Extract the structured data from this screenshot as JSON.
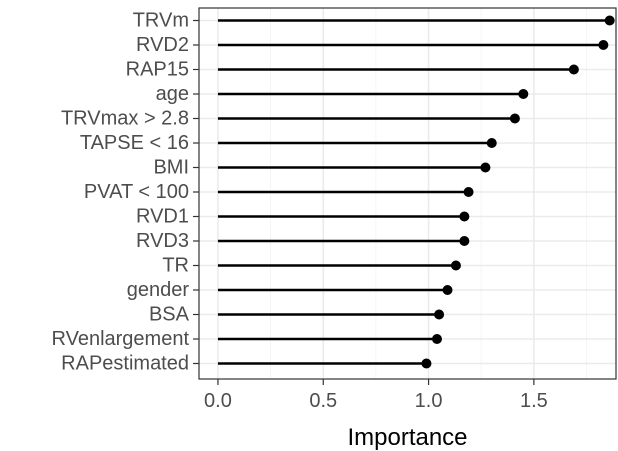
{
  "chart_data": {
    "type": "lollipop",
    "orientation": "horizontal",
    "categories": [
      "TRVm",
      "RVD2",
      "RAP15",
      "age",
      "TRVmax > 2.8",
      "TAPSE < 16",
      "BMI",
      "PVAT < 100",
      "RVD1",
      "RVD3",
      "TR",
      "gender",
      "BSA",
      "RVenlargement",
      "RAPestimated"
    ],
    "values": [
      1.86,
      1.83,
      1.69,
      1.45,
      1.41,
      1.3,
      1.27,
      1.19,
      1.17,
      1.17,
      1.13,
      1.09,
      1.05,
      1.04,
      0.99
    ],
    "xlabel": "Importance",
    "ylabel": "",
    "xlim": [
      -0.09,
      1.89
    ],
    "x_ticks": [
      0.0,
      0.5,
      1.0,
      1.5
    ],
    "x_tick_labels": [
      "0.0",
      "0.5",
      "1.0",
      "1.5"
    ],
    "grid": true,
    "colors": {
      "mark": "#000000",
      "grid_major": "#ebebeb",
      "grid_minor": "#f5f5f5",
      "panel_border": "#333333",
      "tick_text": "#4d4d4d"
    }
  }
}
